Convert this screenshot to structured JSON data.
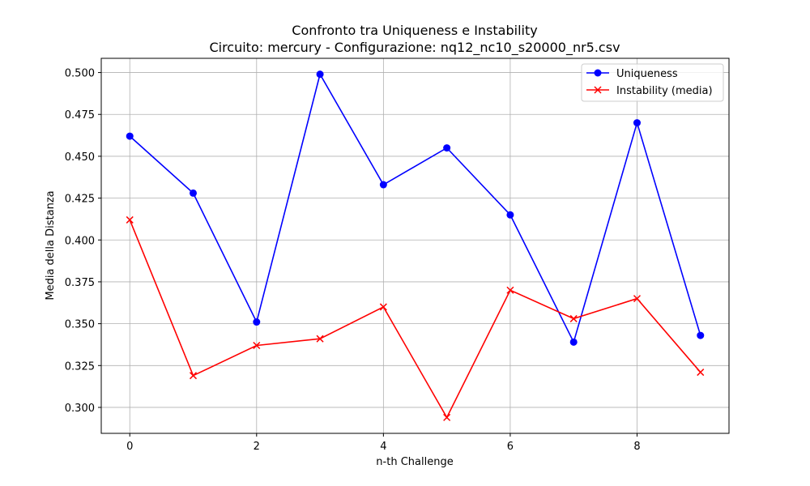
{
  "chart_data": {
    "type": "line",
    "title": "Confronto tra Uniqueness e Instability",
    "subtitle": "Circuito: mercury - Configurazione: nq12_nc10_s20000_nr5.csv",
    "xlabel": "n-th Challenge",
    "ylabel": "Media della Distanza",
    "x": [
      0,
      1,
      2,
      3,
      4,
      5,
      6,
      7,
      8,
      9
    ],
    "xlim": [
      -0.45,
      9.45
    ],
    "ylim": [
      0.2845,
      0.5085
    ],
    "xticks": [
      0,
      2,
      4,
      6,
      8
    ],
    "yticks": [
      0.3,
      0.325,
      0.35,
      0.375,
      0.4,
      0.425,
      0.45,
      0.475,
      0.5
    ],
    "ytick_labels": [
      "0.300",
      "0.325",
      "0.350",
      "0.375",
      "0.400",
      "0.425",
      "0.450",
      "0.475",
      "0.500"
    ],
    "grid": true,
    "legend_position": "top-right",
    "series": [
      {
        "name": "Uniqueness",
        "color": "#0000ff",
        "marker": "circle",
        "values": [
          0.462,
          0.428,
          0.351,
          0.499,
          0.433,
          0.455,
          0.415,
          0.339,
          0.47,
          0.343
        ]
      },
      {
        "name": "Instability (media)",
        "color": "#ff0000",
        "marker": "x",
        "values": [
          0.412,
          0.319,
          0.337,
          0.341,
          0.36,
          0.294,
          0.37,
          0.353,
          0.365,
          0.321
        ]
      }
    ]
  }
}
